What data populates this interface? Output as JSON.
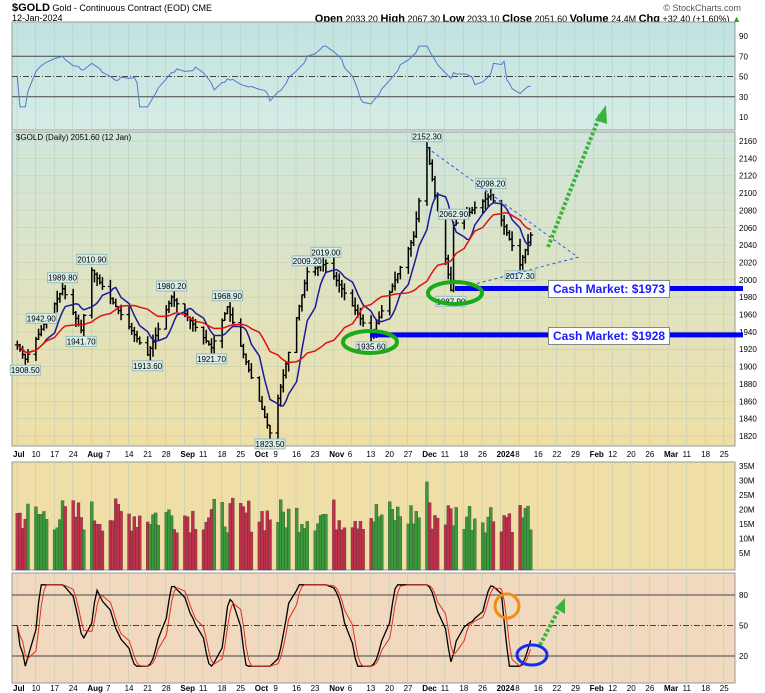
{
  "header": {
    "symbol": "$GOLD",
    "name": "Gold - Continuous Contract (EOD)",
    "exchange": "CME",
    "date": "12-Jan-2024",
    "copyright": "© StockCharts.com",
    "open_label": "Open",
    "open": "2033.20",
    "high_label": "High",
    "high": "2067.30",
    "low_label": "Low",
    "low": "2033.10",
    "close_label": "Close",
    "close": "2051.60",
    "volume_label": "Volume",
    "volume": "24.4M",
    "chg_label": "Chg",
    "chg": "+32.40 (+1.60%)"
  },
  "price_legend": "$GOLD (Daily) 2051.60 (12 Jan)",
  "annotations": {
    "cash1": "Cash Market: $1973",
    "cash2": "Cash Market: $1928"
  },
  "colors": {
    "ma_fast": "#1a1a9a",
    "ma_slow": "#e01010",
    "cash_line": "#0000ee",
    "ellipse": "#1aaa1a",
    "arrow": "#3cb33c",
    "up_volume": "#3a9a3a",
    "down_volume": "#c0304a"
  },
  "chart_data": [
    {
      "type": "bar",
      "panel": "price",
      "ylim": [
        1810,
        2175
      ],
      "yticks": [
        1820,
        1840,
        1860,
        1880,
        1900,
        1920,
        1940,
        1960,
        1980,
        2000,
        2020,
        2040,
        2060,
        2080,
        2100,
        2120,
        2140,
        2160
      ],
      "xticks": [
        "Jul",
        "10",
        "17",
        "24",
        "Aug",
        "7",
        "14",
        "21",
        "28",
        "Sep",
        "11",
        "18",
        "25",
        "Oct",
        "9",
        "16",
        "23",
        "Nov",
        "6",
        "13",
        "20",
        "27",
        "Dec",
        "11",
        "18",
        "26",
        "2024",
        "8",
        "16",
        "22",
        "29",
        "Feb",
        "12",
        "20",
        "26",
        "Mar",
        "11",
        "18",
        "25"
      ],
      "pivots": [
        [
          "2023-07-03",
          1925
        ],
        [
          "2023-07-06",
          1908.5
        ],
        [
          "2023-07-12",
          1942.9
        ],
        [
          "2023-07-20",
          1989.8
        ],
        [
          "2023-07-27",
          1941.7
        ],
        [
          "2023-07-31",
          2010.9
        ],
        [
          "2023-08-21",
          1913.6
        ],
        [
          "2023-08-30",
          1980.2
        ],
        [
          "2023-09-14",
          1921.7
        ],
        [
          "2023-09-20",
          1968.9
        ],
        [
          "2023-10-06",
          1823.5
        ],
        [
          "2023-10-20",
          2009.2
        ],
        [
          "2023-10-27",
          2019.0
        ],
        [
          "2023-11-13",
          1935.6
        ],
        [
          "2023-11-29",
          2050
        ],
        [
          "2023-12-04",
          2152.3
        ],
        [
          "2023-12-13",
          1987.9
        ],
        [
          "2023-12-14",
          2062.9
        ],
        [
          "2023-12-28",
          2098.2
        ],
        [
          "2024-01-08",
          2017.3
        ],
        [
          "2024-01-12",
          2051.6
        ]
      ],
      "labels": [
        "1942.90",
        "1908.50",
        "1989.80",
        "1941.70",
        "2010.90",
        "1913.60",
        "1980.20",
        "1921.70",
        "1968.90",
        "1823.50",
        "2009.20",
        "2019.00",
        "1935.60",
        "2152.30",
        "1987.90",
        "2062.90",
        "2098.20",
        "2017.30"
      ]
    },
    {
      "type": "line",
      "panel": "rsi",
      "ylim": [
        0,
        100
      ],
      "yticks": [
        10,
        30,
        50,
        70,
        90
      ],
      "levels": [
        30,
        50,
        70
      ]
    },
    {
      "type": "bar",
      "panel": "volume",
      "yticks": [
        "5M",
        "10M",
        "15M",
        "20M",
        "25M",
        "30M",
        "35M"
      ]
    },
    {
      "type": "line",
      "panel": "stochastic",
      "yticks": [
        20,
        50,
        80
      ],
      "levels": [
        20,
        50,
        80
      ]
    }
  ]
}
